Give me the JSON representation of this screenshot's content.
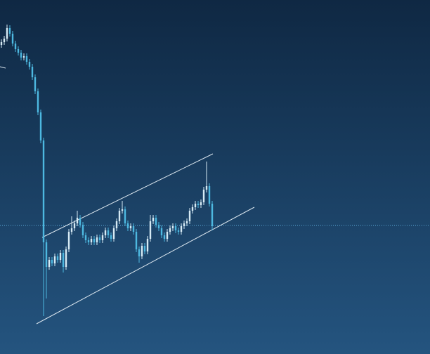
{
  "chart_data": {
    "type": "candlestick",
    "categories": [
      null,
      null,
      null,
      null,
      null,
      null,
      null,
      null,
      null,
      null,
      null,
      null,
      null,
      null,
      null,
      null,
      null,
      null,
      null,
      null,
      null,
      null,
      null,
      null,
      null,
      null,
      null,
      null,
      null,
      null,
      null,
      null,
      null,
      null,
      null,
      null,
      null,
      null,
      null,
      null,
      null,
      null,
      null,
      null,
      null,
      null,
      null,
      null,
      null,
      null,
      null,
      null,
      null,
      null,
      null,
      null,
      null,
      null,
      null,
      null,
      null,
      null,
      null,
      null,
      null,
      null,
      null,
      null,
      null,
      null,
      null,
      null,
      null,
      null,
      null,
      null
    ],
    "open": [
      440,
      444,
      449,
      464,
      456,
      442,
      434,
      429,
      422,
      424,
      416,
      409,
      394,
      374,
      344,
      304,
      159,
      124,
      134,
      129,
      139,
      134,
      144,
      124,
      149,
      174,
      179,
      186,
      194,
      184,
      169,
      162,
      159,
      164,
      159,
      166,
      162,
      169,
      176,
      169,
      164,
      179,
      189,
      204,
      206,
      186,
      179,
      182,
      174,
      149,
      139,
      154,
      146,
      164,
      189,
      194,
      184,
      179,
      169,
      164,
      174,
      179,
      182,
      176,
      174,
      182,
      186,
      189,
      204,
      209,
      214,
      212,
      216,
      234,
      239,
      214
    ],
    "high": [
      448,
      453,
      469,
      468,
      460,
      446,
      438,
      433,
      428,
      428,
      420,
      413,
      398,
      378,
      348,
      308,
      163,
      138,
      138,
      143,
      143,
      148,
      148,
      153,
      178,
      196,
      190,
      204,
      198,
      188,
      173,
      166,
      168,
      168,
      170,
      170,
      173,
      180,
      180,
      173,
      183,
      193,
      208,
      218,
      210,
      190,
      186,
      186,
      178,
      153,
      158,
      158,
      168,
      198,
      198,
      198,
      188,
      183,
      173,
      178,
      183,
      186,
      186,
      180,
      186,
      190,
      193,
      208,
      213,
      218,
      218,
      220,
      238,
      274,
      243,
      218
    ],
    "low": [
      436,
      440,
      445,
      452,
      438,
      430,
      425,
      418,
      418,
      412,
      405,
      390,
      370,
      340,
      300,
      54,
      79,
      120,
      125,
      125,
      130,
      130,
      116,
      120,
      145,
      170,
      175,
      182,
      180,
      165,
      158,
      155,
      155,
      155,
      155,
      158,
      158,
      165,
      165,
      160,
      160,
      175,
      185,
      200,
      182,
      175,
      175,
      170,
      145,
      130,
      135,
      142,
      142,
      160,
      185,
      180,
      175,
      165,
      160,
      160,
      170,
      175,
      172,
      170,
      170,
      178,
      182,
      185,
      200,
      205,
      208,
      208,
      212,
      230,
      210,
      176
    ],
    "close": [
      444,
      449,
      464,
      456,
      442,
      434,
      429,
      422,
      424,
      416,
      409,
      394,
      374,
      344,
      304,
      159,
      124,
      134,
      129,
      139,
      134,
      144,
      124,
      149,
      174,
      179,
      186,
      194,
      184,
      169,
      162,
      159,
      164,
      159,
      166,
      162,
      169,
      176,
      169,
      164,
      179,
      189,
      204,
      206,
      186,
      179,
      182,
      174,
      149,
      139,
      154,
      146,
      164,
      189,
      194,
      184,
      179,
      169,
      164,
      174,
      179,
      182,
      176,
      174,
      182,
      186,
      189,
      204,
      209,
      214,
      212,
      216,
      234,
      239,
      214,
      182
    ],
    "up_color": "#d6eaf4",
    "down_color": "#4db8e0",
    "xlim": [
      -0.5,
      152.5
    ],
    "ylim": [
      0,
      504
    ],
    "trendlines": [
      {
        "x": [
          14.5,
          75.25
        ],
        "y": [
          166,
          285
        ],
        "color": "#dde8f0"
      },
      {
        "x": [
          12.5,
          90
        ],
        "y": [
          43,
          209
        ],
        "color": "#dde8f0"
      }
    ],
    "hline": {
      "y": 183,
      "color": "#5aa9d6"
    }
  }
}
